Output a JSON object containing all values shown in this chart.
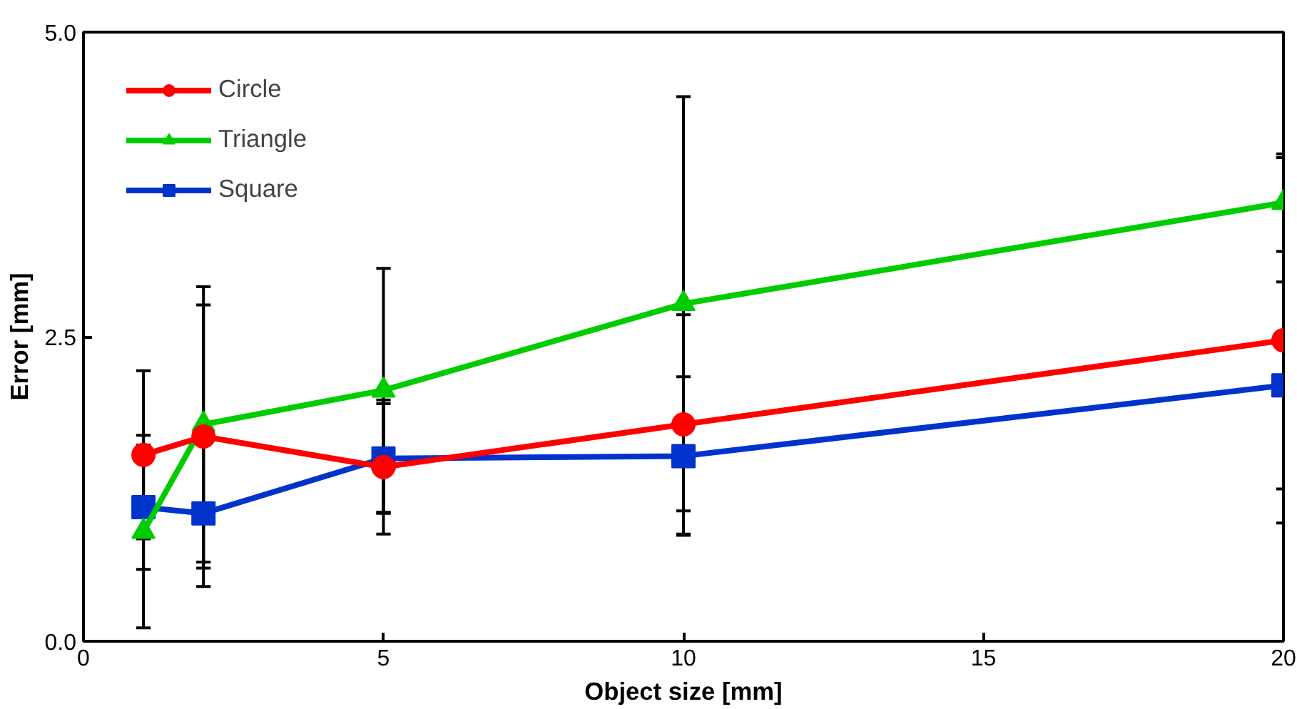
{
  "chart_data": {
    "type": "line",
    "xlabel": "Object size [mm]",
    "ylabel": "Error [mm]",
    "x": [
      1,
      2,
      5,
      10,
      20
    ],
    "xlim": [
      0,
      20
    ],
    "xticks": [
      0,
      5,
      10,
      15,
      20
    ],
    "ylim": [
      0,
      5
    ],
    "yticks": [
      {
        "value": 0,
        "label": "0.0"
      },
      {
        "value": 2.5,
        "label": "2.5"
      },
      {
        "value": 5,
        "label": "5.0"
      }
    ],
    "grid": false,
    "legend": "top left",
    "line_style": "solid",
    "series": [
      {
        "name": "Circle",
        "color": "#ff0000",
        "marker": "circle",
        "values": [
          1.53,
          1.68,
          1.43,
          1.78,
          2.47
        ],
        "errors": [
          0.69,
          1.08,
          0.55,
          0.9,
          1.5
        ]
      },
      {
        "name": "Triangle",
        "color": "#00cc00",
        "marker": "triangle",
        "values": [
          0.9,
          1.78,
          2.06,
          2.77,
          3.6
        ],
        "errors": [
          0.79,
          1.13,
          1.0,
          1.7,
          0.4
        ]
      },
      {
        "name": "Square",
        "color": "#0033cc",
        "marker": "square",
        "values": [
          1.1,
          1.05,
          1.5,
          1.52,
          2.1
        ],
        "errors": [
          0.51,
          0.6,
          0.45,
          0.65,
          0.85
        ]
      }
    ]
  }
}
